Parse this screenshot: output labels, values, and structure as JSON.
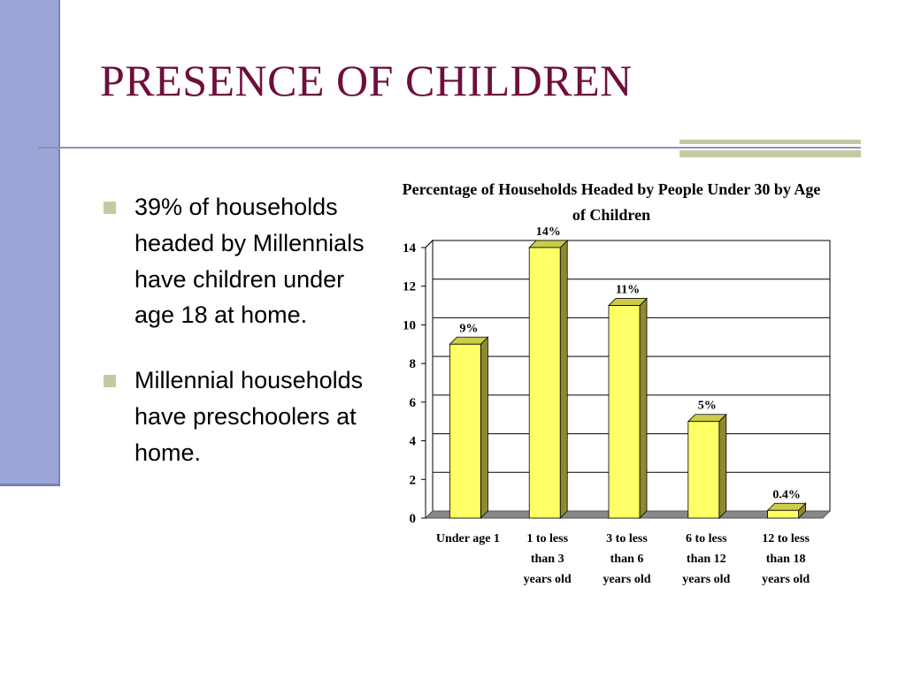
{
  "slide": {
    "title": "PRESENCE OF CHILDREN",
    "bullets": [
      "39% of households headed by Millennials have children under age 18 at home.",
      "Millennial households have preschoolers at home."
    ]
  },
  "colors": {
    "title": "#6d0f3c",
    "left_bar": "#9aa6d5",
    "accent": "#c5c9a2",
    "bar_front": "#ffff66",
    "bar_side": "#8f8a30",
    "bar_top": "#cccc4a"
  },
  "chart_data": {
    "type": "bar",
    "title": "Percentage of Households Headed by People Under 30 by Age of Children",
    "categories": [
      [
        "Under age 1"
      ],
      [
        "1 to less",
        "than 3",
        "years old"
      ],
      [
        "3 to less",
        "than 6",
        "years old"
      ],
      [
        "6 to less",
        "than 12",
        "years old"
      ],
      [
        "12 to less",
        "than 18",
        "years old"
      ]
    ],
    "values": [
      9,
      14,
      11,
      5,
      0.4
    ],
    "data_labels": [
      "9%",
      "14%",
      "11%",
      "5%",
      "0.4%"
    ],
    "ylim": [
      0,
      14
    ],
    "yticks": [
      0,
      2,
      4,
      6,
      8,
      10,
      12,
      14
    ],
    "grid": true,
    "legend": "none",
    "style": "3d"
  }
}
